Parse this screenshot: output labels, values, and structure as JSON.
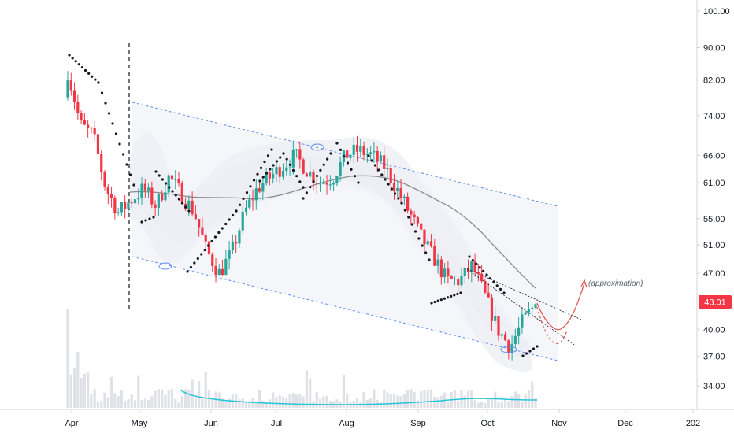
{
  "chart_data": {
    "type": "candlestick",
    "y_scale": "log",
    "ylim": [
      32,
      104
    ],
    "y_ticks": [
      "100.00",
      "90.00",
      "82.00",
      "74.00",
      "66.00",
      "61.00",
      "55.00",
      "51.00",
      "47.00",
      "40.00",
      "37.00",
      "34.00"
    ],
    "x_ticks": [
      "Apr",
      "May",
      "Jun",
      "Jul",
      "Aug",
      "Sep",
      "Oct",
      "Nov",
      "Dec",
      "202"
    ],
    "last_price": "43.01",
    "last_price_color": "#f23645",
    "up_color": "#26a69a",
    "down_color": "#f23645",
    "channel_color": "#5b8def",
    "band_color": "#e6e7ee",
    "sma_color": "#8c8c8c",
    "volume_ma_color": "#26c6da",
    "psar_color": "#131722",
    "projection_color": "#d9534f",
    "annotation": "(approximation)",
    "closes_approx": [
      84,
      72,
      70,
      60,
      56,
      58,
      60,
      57,
      62,
      59,
      56,
      50,
      47,
      50,
      56,
      60,
      62,
      64,
      66,
      63,
      61,
      62,
      66,
      67,
      66,
      64,
      60,
      56,
      52,
      49,
      46,
      46,
      48,
      44,
      40,
      38,
      41,
      43.01
    ],
    "channel": {
      "upper": [
        77,
        57
      ],
      "lower": [
        49.5,
        36.5
      ]
    }
  }
}
